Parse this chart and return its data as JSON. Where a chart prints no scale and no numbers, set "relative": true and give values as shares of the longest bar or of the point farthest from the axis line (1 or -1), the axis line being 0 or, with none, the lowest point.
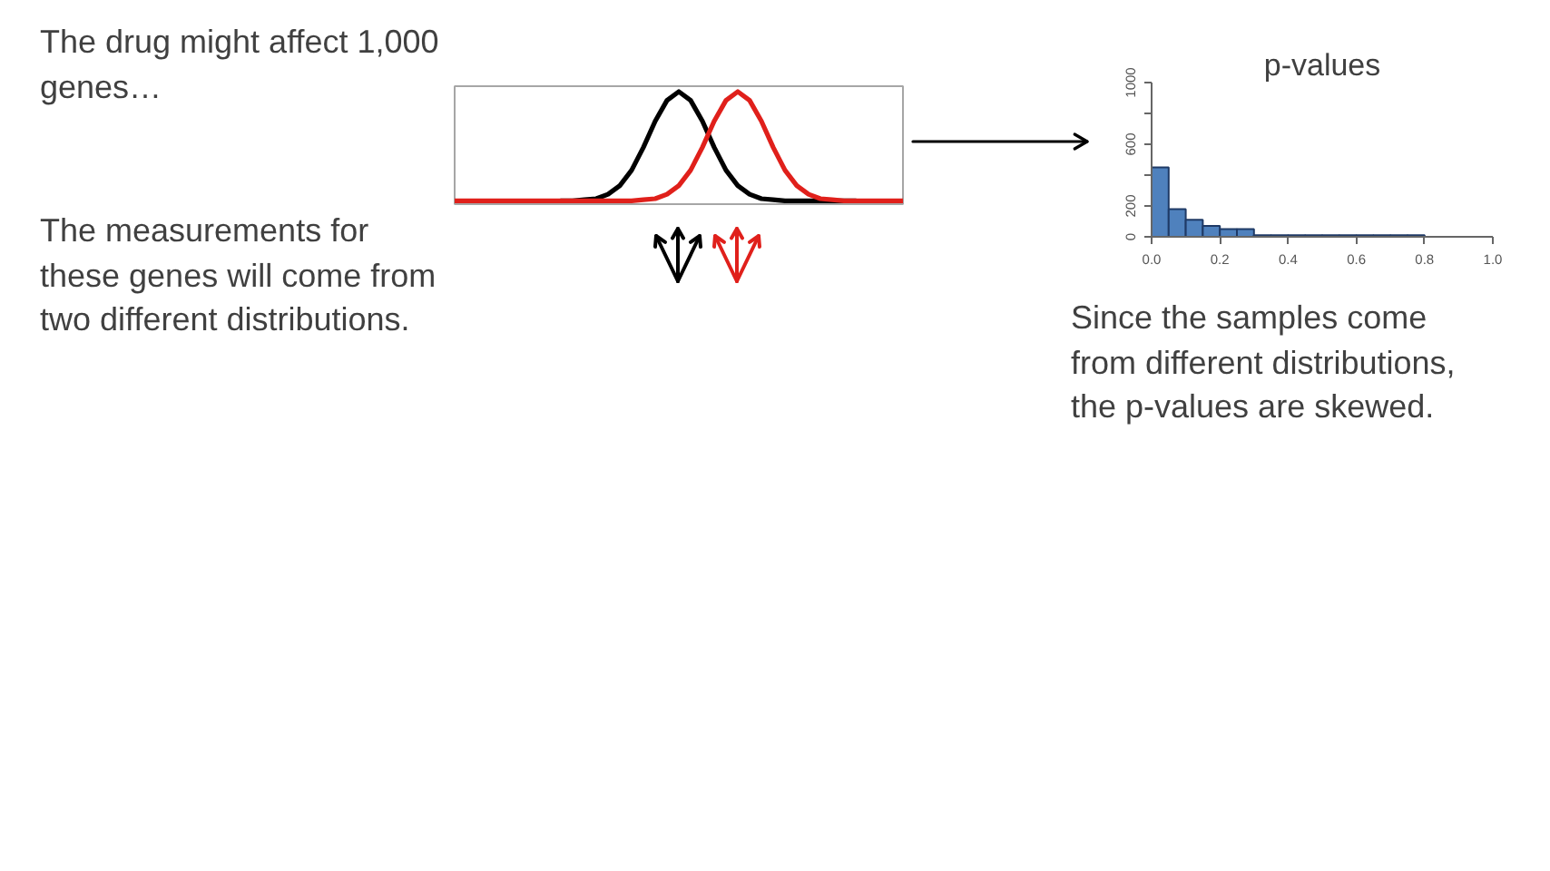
{
  "chart_data": [
    {
      "type": "line",
      "relative": true,
      "categories": [
        null,
        null,
        null,
        null,
        null,
        null,
        null,
        null,
        null,
        null,
        null,
        null,
        null,
        null,
        null,
        null,
        null,
        null,
        null,
        null,
        null,
        null,
        null,
        null,
        null,
        null,
        null,
        null,
        null,
        null,
        null,
        null,
        null,
        null,
        null,
        null,
        null,
        null,
        null
      ],
      "series": [
        {
          "color": "#000000",
          "values": [
            null,
            null,
            null,
            null,
            null,
            null,
            null,
            null,
            null,
            0,
            0,
            0.01,
            0.02,
            0.06,
            0.14,
            0.28,
            0.49,
            0.73,
            0.92,
            1,
            0.92,
            0.73,
            0.49,
            0.28,
            0.14,
            0.06,
            0.02,
            0.01,
            0,
            0,
            0,
            0,
            0,
            0,
            0,
            null,
            null,
            null,
            null
          ]
        },
        {
          "color": "#e0201b",
          "values": [
            0,
            0,
            0,
            0,
            0,
            0,
            0,
            0,
            0,
            0,
            0,
            0,
            0,
            0,
            0,
            0,
            0.01,
            0.02,
            0.06,
            0.14,
            0.28,
            0.49,
            0.73,
            0.92,
            1,
            0.92,
            0.73,
            0.49,
            0.28,
            0.14,
            0.06,
            0.02,
            0.01,
            0,
            0,
            0,
            0,
            0,
            0
          ]
        }
      ],
      "tick_labels": false,
      "annotations": [
        "The drug might affect 1,000 genes…",
        "The measurements for these genes will come from two different distributions."
      ]
    },
    {
      "type": "histogram",
      "title": "p-values",
      "bins": [
        0,
        0.05,
        0.1,
        0.15,
        0.2,
        0.25,
        0.3,
        0.35,
        0.4,
        0.45,
        0.5,
        0.55,
        0.6,
        0.65,
        0.7,
        0.75,
        0.8,
        0.85,
        0.9,
        0.95,
        1
      ],
      "values": [
        450,
        180,
        110,
        70,
        50,
        50,
        10,
        10,
        10,
        10,
        10,
        10,
        10,
        10,
        10,
        10,
        0,
        0,
        0,
        0
      ],
      "color": "#4f81bd",
      "xlim": [
        0,
        1
      ],
      "xticks": [
        {
          "value": 0,
          "label": "0.0"
        },
        0.2,
        0.4,
        0.6,
        0.8,
        {
          "value": 1,
          "label": "1.0"
        }
      ],
      "ylim": [
        0,
        1000
      ],
      "yticks": [
        0,
        200,
        {
          "value": 400,
          "label": null
        },
        600,
        {
          "value": 800,
          "label": null
        },
        1000
      ],
      "annotations": [
        "Since the samples come from different distributions, the p-values are skewed."
      ]
    }
  ]
}
